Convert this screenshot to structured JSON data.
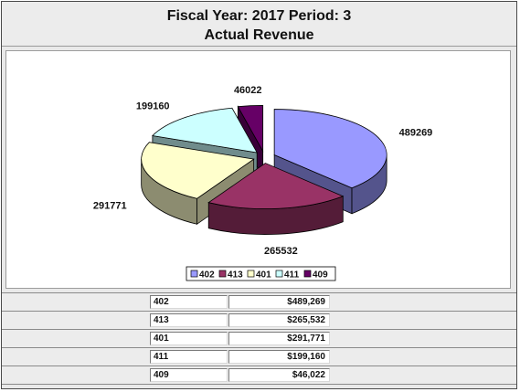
{
  "header": {
    "line1": "Fiscal Year:  2017    Period: 3",
    "line2": "Actual Revenue"
  },
  "chart_data": {
    "type": "pie",
    "title": "",
    "categories": [
      "402",
      "413",
      "401",
      "411",
      "409"
    ],
    "values": [
      489269,
      265532,
      291771,
      199160,
      46022
    ],
    "data_labels": [
      "489269",
      "265532",
      "291771",
      "199160",
      "46022"
    ],
    "colors": [
      "#9999FF",
      "#993366",
      "#FFFFCC",
      "#CCFFFF",
      "#660066"
    ],
    "style": "3d-exploded",
    "legend": "bottom"
  },
  "table": {
    "rows": [
      {
        "account": "402",
        "amount": "$489,269"
      },
      {
        "account": "413",
        "amount": "$265,532"
      },
      {
        "account": "401",
        "amount": "$291,771"
      },
      {
        "account": "411",
        "amount": "$199,160"
      },
      {
        "account": "409",
        "amount": "$46,022"
      }
    ]
  }
}
